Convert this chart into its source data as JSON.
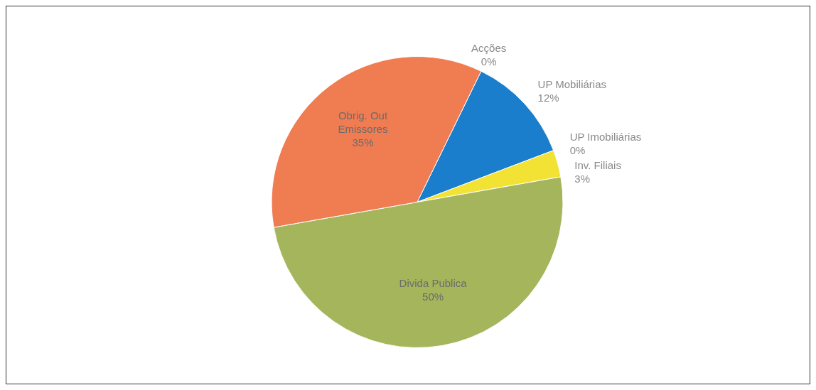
{
  "chart_data": {
    "type": "pie",
    "categories": [
      "Acções",
      "UP Mobiliárias",
      "UP Imobiliárias",
      "Inv. Filiais",
      "Divida Publica",
      "Obrig. Out Emissores"
    ],
    "values": [
      0,
      12,
      0,
      3,
      50,
      35
    ],
    "colors": [
      "#7b5ea7",
      "#1a7ecc",
      "#a0a0a0",
      "#f2e234",
      "#a5b55c",
      "#f07c52"
    ],
    "value_labels": [
      "0%",
      "12%",
      "0%",
      "3%",
      "50%",
      "35%"
    ]
  }
}
